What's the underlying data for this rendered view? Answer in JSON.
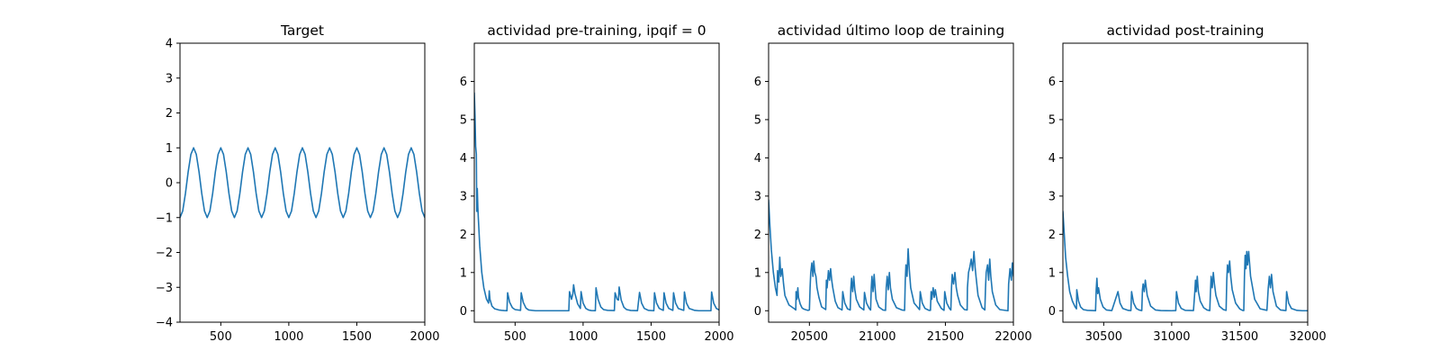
{
  "figure": {
    "background": "#ffffff",
    "line_color": "#1f77b4"
  },
  "chart_data": [
    {
      "type": "line",
      "title": "Target",
      "xlabel": "",
      "ylabel": "",
      "xlim": [
        200,
        2000
      ],
      "ylim": [
        -4,
        4
      ],
      "xticks": [
        500,
        1000,
        1500,
        2000
      ],
      "xtick_labels": [
        "500",
        "1000",
        "1500",
        "2000"
      ],
      "yticks": [
        -4,
        -3,
        -2,
        -1,
        0,
        1,
        2,
        3,
        4
      ],
      "ytick_labels": [
        "−4",
        "−3",
        "−2",
        "−1",
        "0",
        "1",
        "2",
        "3",
        "4"
      ],
      "grid": false,
      "series": [
        {
          "color": "#1f77b4",
          "x": [
            200,
            220,
            240,
            260,
            280,
            300,
            320,
            340,
            360,
            380,
            400,
            420,
            440,
            460,
            480,
            500,
            520,
            540,
            560,
            580,
            600,
            620,
            640,
            660,
            680,
            700,
            720,
            740,
            760,
            780,
            800,
            820,
            840,
            860,
            880,
            900,
            920,
            940,
            960,
            980,
            1000,
            1020,
            1040,
            1060,
            1080,
            1100,
            1120,
            1140,
            1160,
            1180,
            1200,
            1220,
            1240,
            1260,
            1280,
            1300,
            1320,
            1340,
            1360,
            1380,
            1400,
            1420,
            1440,
            1460,
            1480,
            1500,
            1520,
            1540,
            1560,
            1580,
            1600,
            1620,
            1640,
            1660,
            1680,
            1700,
            1720,
            1740,
            1760,
            1780,
            1800,
            1820,
            1840,
            1860,
            1880,
            1900,
            1920,
            1940,
            1960,
            1980,
            2000
          ],
          "y": [
            -1.0,
            -0.81,
            -0.31,
            0.31,
            0.81,
            1.0,
            0.81,
            0.31,
            -0.31,
            -0.81,
            -1.0,
            -0.81,
            -0.31,
            0.31,
            0.81,
            1.0,
            0.81,
            0.31,
            -0.31,
            -0.81,
            -1.0,
            -0.81,
            -0.31,
            0.31,
            0.81,
            1.0,
            0.81,
            0.31,
            -0.31,
            -0.81,
            -1.0,
            -0.81,
            -0.31,
            0.31,
            0.81,
            1.0,
            0.81,
            0.31,
            -0.31,
            -0.81,
            -1.0,
            -0.81,
            -0.31,
            0.31,
            0.81,
            1.0,
            0.81,
            0.31,
            -0.31,
            -0.81,
            -1.0,
            -0.81,
            -0.31,
            0.31,
            0.81,
            1.0,
            0.81,
            0.31,
            -0.31,
            -0.81,
            -1.0,
            -0.81,
            -0.31,
            0.31,
            0.81,
            1.0,
            0.81,
            0.31,
            -0.31,
            -0.81,
            -1.0,
            -0.81,
            -0.31,
            0.31,
            0.81,
            1.0,
            0.81,
            0.31,
            -0.31,
            -0.81,
            -1.0,
            -0.81,
            -0.31,
            0.31,
            0.81,
            1.0,
            0.81,
            0.31,
            -0.31,
            -0.81,
            -1.0
          ]
        }
      ]
    },
    {
      "type": "line",
      "title": "actividad pre-training, ipqif = 0",
      "xlabel": "",
      "ylabel": "",
      "xlim": [
        200,
        2000
      ],
      "ylim": [
        -0.3,
        7.0
      ],
      "xticks": [
        500,
        1000,
        1500,
        2000
      ],
      "xtick_labels": [
        "500",
        "1000",
        "1500",
        "2000"
      ],
      "yticks": [
        0,
        1,
        2,
        3,
        4,
        5,
        6
      ],
      "ytick_labels": [
        "0",
        "1",
        "2",
        "3",
        "4",
        "5",
        "6"
      ],
      "grid": false,
      "series": [
        {
          "color": "#1f77b4",
          "x": [
            200,
            205,
            210,
            215,
            218,
            222,
            226,
            230,
            240,
            255,
            270,
            290,
            305,
            310,
            315,
            330,
            350,
            380,
            400,
            420,
            440,
            445,
            460,
            480,
            500,
            540,
            545,
            560,
            580,
            600,
            650,
            700,
            750,
            800,
            850,
            895,
            900,
            915,
            925,
            930,
            940,
            960,
            980,
            985,
            1000,
            1020,
            1040,
            1060,
            1090,
            1095,
            1110,
            1130,
            1150,
            1180,
            1230,
            1235,
            1250,
            1260,
            1265,
            1280,
            1300,
            1320,
            1350,
            1400,
            1415,
            1430,
            1450,
            1480,
            1520,
            1525,
            1540,
            1560,
            1590,
            1595,
            1610,
            1630,
            1660,
            1665,
            1680,
            1700,
            1740,
            1745,
            1760,
            1780,
            1820,
            1850,
            1900,
            1940,
            1945,
            1960,
            1980,
            2000
          ],
          "y": [
            5.7,
            5.1,
            4.3,
            4.1,
            2.6,
            3.2,
            2.7,
            2.4,
            1.7,
            1.0,
            0.6,
            0.3,
            0.2,
            0.52,
            0.3,
            0.12,
            0.05,
            0.02,
            0.01,
            0.005,
            0.002,
            0.47,
            0.22,
            0.08,
            0.03,
            0.01,
            0.47,
            0.22,
            0.07,
            0.02,
            0.0,
            0.0,
            0.0,
            0.0,
            0.0,
            0.0,
            0.5,
            0.3,
            0.45,
            0.68,
            0.45,
            0.18,
            0.06,
            0.5,
            0.2,
            0.06,
            0.02,
            0.005,
            0.001,
            0.6,
            0.3,
            0.1,
            0.03,
            0.01,
            0.005,
            0.47,
            0.3,
            0.28,
            0.62,
            0.28,
            0.09,
            0.03,
            0.008,
            0.002,
            0.48,
            0.2,
            0.06,
            0.01,
            0.0,
            0.47,
            0.2,
            0.06,
            0.01,
            0.47,
            0.2,
            0.06,
            0.01,
            0.47,
            0.2,
            0.06,
            0.01,
            0.49,
            0.2,
            0.06,
            0.01,
            0.0,
            0.0,
            0.0,
            0.49,
            0.2,
            0.06,
            0.02
          ]
        }
      ]
    },
    {
      "type": "line",
      "title": "actividad último loop de training",
      "xlabel": "",
      "ylabel": "",
      "xlim": [
        20200,
        22000
      ],
      "ylim": [
        -0.3,
        7.0
      ],
      "xticks": [
        20500,
        21000,
        21500,
        22000
      ],
      "xtick_labels": [
        "20500",
        "21000",
        "21500",
        "22000"
      ],
      "yticks": [
        0,
        1,
        2,
        3,
        4,
        5,
        6
      ],
      "ytick_labels": [
        "0",
        "1",
        "2",
        "3",
        "4",
        "5",
        "6"
      ],
      "grid": false,
      "series": [
        {
          "color": "#1f77b4",
          "x": [
            20200,
            20210,
            20220,
            20235,
            20250,
            20262,
            20266,
            20275,
            20282,
            20290,
            20300,
            20310,
            20320,
            20350,
            20390,
            20400,
            20402,
            20408,
            20415,
            20420,
            20432,
            20445,
            20455,
            20470,
            20490,
            20500,
            20505,
            20510,
            20518,
            20526,
            20532,
            20540,
            20548,
            20556,
            20570,
            20590,
            20620,
            20625,
            20630,
            20640,
            20648,
            20656,
            20664,
            20672,
            20690,
            20710,
            20740,
            20745,
            20760,
            20780,
            20800,
            20805,
            20810,
            20818,
            20826,
            20834,
            20845,
            20870,
            20900,
            20905,
            20920,
            20940,
            20950,
            20955,
            20960,
            20968,
            20976,
            20984,
            20990,
            21010,
            21040,
            21060,
            21065,
            21072,
            21080,
            21088,
            21096,
            21110,
            21140,
            21180,
            21200,
            21205,
            21210,
            21218,
            21226,
            21234,
            21245,
            21270,
            21310,
            21315,
            21330,
            21350,
            21380,
            21390,
            21395,
            21400,
            21410,
            21418,
            21426,
            21440,
            21470,
            21490,
            21495,
            21510,
            21530,
            21540,
            21545,
            21550,
            21560,
            21570,
            21580,
            21590,
            21610,
            21640,
            21660,
            21662,
            21670,
            21680,
            21690,
            21700,
            21710,
            21718,
            21725,
            21740,
            21770,
            21790,
            21795,
            21800,
            21810,
            21818,
            21826,
            21834,
            21845,
            21870,
            21900,
            21960,
            21965,
            21975,
            21985,
            21992,
            22000
          ],
          "y": [
            2.9,
            2.2,
            1.6,
            1.0,
            0.6,
            0.4,
            1.05,
            0.75,
            1.4,
            0.9,
            1.1,
            0.7,
            0.4,
            0.15,
            0.05,
            0.02,
            0.5,
            0.3,
            0.6,
            0.35,
            0.18,
            0.08,
            0.05,
            0.03,
            0.01,
            0.02,
            0.6,
            1.0,
            1.25,
            0.9,
            1.3,
            1.0,
            0.9,
            0.6,
            0.35,
            0.1,
            0.03,
            0.8,
            0.6,
            1.05,
            0.8,
            1.1,
            0.8,
            0.6,
            0.25,
            0.08,
            0.02,
            0.5,
            0.2,
            0.05,
            0.02,
            0.6,
            0.85,
            0.5,
            0.9,
            0.55,
            0.3,
            0.1,
            0.02,
            0.48,
            0.2,
            0.06,
            0.02,
            0.6,
            0.9,
            0.5,
            0.95,
            0.55,
            0.3,
            0.1,
            0.02,
            0.01,
            0.6,
            0.9,
            0.55,
            1.0,
            0.6,
            0.3,
            0.08,
            0.02,
            0.01,
            0.8,
            1.2,
            0.9,
            1.62,
            1.1,
            0.6,
            0.2,
            0.03,
            0.5,
            0.2,
            0.06,
            0.01,
            0.01,
            0.5,
            0.3,
            0.6,
            0.35,
            0.55,
            0.25,
            0.06,
            0.01,
            0.5,
            0.2,
            0.06,
            0.02,
            0.6,
            0.95,
            0.7,
            1.0,
            0.6,
            0.4,
            0.15,
            0.03,
            0.02,
            0.6,
            1.0,
            1.15,
            1.35,
            1.05,
            1.55,
            1.15,
            0.9,
            0.4,
            0.08,
            0.02,
            0.6,
            1.0,
            1.2,
            0.8,
            1.35,
            0.9,
            0.5,
            0.15,
            0.03,
            0.0,
            0.7,
            1.1,
            0.8,
            1.25,
            0.9
          ]
        }
      ]
    },
    {
      "type": "line",
      "title": "actividad post-training",
      "xlabel": "",
      "ylabel": "",
      "xlim": [
        30200,
        32000
      ],
      "ylim": [
        -0.3,
        7.0
      ],
      "xticks": [
        30500,
        31000,
        31500,
        32000
      ],
      "xtick_labels": [
        "30500",
        "31000",
        "31500",
        "32000"
      ],
      "yticks": [
        0,
        1,
        2,
        3,
        4,
        5,
        6
      ],
      "ytick_labels": [
        "0",
        "1",
        "2",
        "3",
        "4",
        "5",
        "6"
      ],
      "grid": false,
      "series": [
        {
          "color": "#1f77b4",
          "x": [
            30200,
            30210,
            30220,
            30235,
            30250,
            30270,
            30290,
            30300,
            30302,
            30315,
            30330,
            30350,
            30380,
            30420,
            30440,
            30445,
            30450,
            30456,
            30462,
            30475,
            30495,
            30520,
            30560,
            30605,
            30620,
            30640,
            30680,
            30700,
            30705,
            30720,
            30740,
            30760,
            30780,
            30785,
            30790,
            30798,
            30806,
            30820,
            30845,
            30880,
            30920,
            30960,
            31000,
            31030,
            31035,
            31050,
            31070,
            31100,
            31160,
            31170,
            31175,
            31180,
            31188,
            31196,
            31210,
            31235,
            31260,
            31280,
            31285,
            31290,
            31298,
            31306,
            31314,
            31325,
            31350,
            31380,
            31400,
            31405,
            31410,
            31418,
            31426,
            31434,
            31445,
            31470,
            31500,
            31520,
            31530,
            31535,
            31540,
            31546,
            31552,
            31558,
            31566,
            31580,
            31610,
            31650,
            31700,
            31710,
            31718,
            31726,
            31734,
            31745,
            31770,
            31800,
            31840,
            31845,
            31860,
            31880,
            31920,
            31960,
            32000
          ],
          "y": [
            2.6,
            2.0,
            1.4,
            0.9,
            0.5,
            0.25,
            0.1,
            0.05,
            0.55,
            0.25,
            0.1,
            0.03,
            0.01,
            0.005,
            0.002,
            0.55,
            0.85,
            0.45,
            0.6,
            0.3,
            0.1,
            0.02,
            0.005,
            0.5,
            0.2,
            0.06,
            0.01,
            0.005,
            0.5,
            0.2,
            0.06,
            0.02,
            0.005,
            0.55,
            0.7,
            0.5,
            0.8,
            0.4,
            0.12,
            0.02,
            0.005,
            0.001,
            0.0,
            0.005,
            0.5,
            0.2,
            0.06,
            0.01,
            0.005,
            0.5,
            0.8,
            0.5,
            0.9,
            0.5,
            0.25,
            0.08,
            0.02,
            0.005,
            0.5,
            0.9,
            0.6,
            1.0,
            0.7,
            0.4,
            0.12,
            0.03,
            0.01,
            0.8,
            1.2,
            1.0,
            1.3,
            0.9,
            0.55,
            0.2,
            0.05,
            0.01,
            0.005,
            0.9,
            1.45,
            1.1,
            1.55,
            1.2,
            1.55,
            0.9,
            0.3,
            0.05,
            0.01,
            0.6,
            0.9,
            0.6,
            0.95,
            0.5,
            0.12,
            0.02,
            0.005,
            0.5,
            0.2,
            0.06,
            0.01,
            0.0,
            0.0
          ]
        }
      ]
    }
  ]
}
